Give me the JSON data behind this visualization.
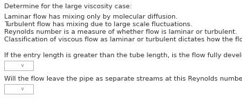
{
  "background_color": "#ffffff",
  "title": "Determine for the large viscosity case:",
  "lines": [
    "Laminar flow has mixing only by molecular diffusion.",
    "Turbulent flow has mixing due to large scale fluctuations.",
    "Reynolds number is a measure of whether flow is laminar or turbulent.",
    "Classification of viscous flow as laminar or turbulent dictates how the flow is analyzed."
  ],
  "question1": "If the entry length is greater than the tube length, is the flow fully developed?",
  "question2": "Will the flow leave the pipe as separate streams at this Reynolds number?",
  "font_size": 6.8,
  "title_font_size": 6.8,
  "text_color": "#333333",
  "box_edge_color": "#bbbbbb",
  "arrow_color": "#777777",
  "arrow_fontsize": 5.0
}
